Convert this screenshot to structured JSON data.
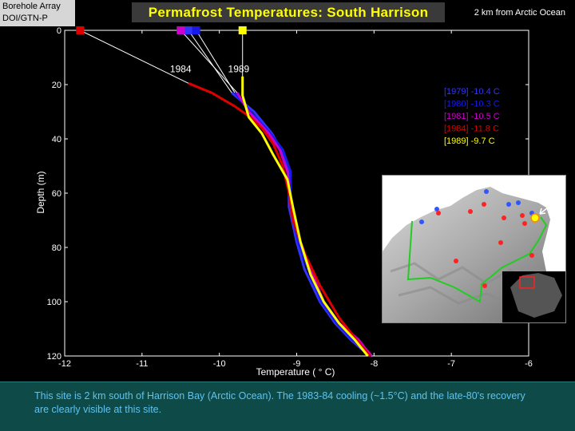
{
  "header": {
    "badge_line1": "Borehole Array",
    "badge_line2": "DOI/GTN-P",
    "title": "Permafrost Temperatures:  South Harrison",
    "subtitle": "2 km from Arctic Ocean"
  },
  "footer": {
    "caption": "This site is 2 km south of Harrison Bay (Arctic Ocean).  The 1983-84 cooling (~1.5°C) and the late-80's recovery are clearly visible at this site."
  },
  "colors": {
    "background": "#000000",
    "title_yellow": "#ffff00",
    "footer_bg": "#0d4a48",
    "footer_text": "#5ec3f2",
    "series_1979": "#3333ff",
    "series_1980": "#1a1ae6",
    "series_1981": "#cc00cc",
    "series_1984": "#dd0000",
    "series_1989": "#ffff00"
  },
  "chart_data": {
    "type": "line",
    "title": "Permafrost Temperatures:  South Harrison",
    "xlabel": "Temperature ( ° C)",
    "ylabel": "Depth (m)",
    "xlim": [
      -12,
      -6
    ],
    "ylim": [
      0,
      120
    ],
    "y_inverted": true,
    "grid": false,
    "xticks": [
      -12,
      -11,
      -10,
      -9,
      -8,
      -7,
      -6
    ],
    "yticks": [
      0,
      20,
      40,
      60,
      80,
      100,
      120
    ],
    "legend_position": "right",
    "series": [
      {
        "name": "[1979]  -10.4 C",
        "year": "1979",
        "surface_temp": -10.4,
        "color": "#3333ff",
        "x": [
          -9.84,
          -9.55,
          -9.32,
          -9.2,
          -9.1,
          -9.1,
          -9.0,
          -8.9,
          -8.7,
          -8.5,
          -8.3,
          -8.18,
          -8.05
        ],
        "y": [
          23,
          30,
          38,
          44,
          52,
          65,
          78,
          88,
          100,
          108,
          114,
          117,
          120
        ]
      },
      {
        "name": "[1980]  -10.3 C",
        "year": "1980",
        "surface_temp": -10.3,
        "color": "#1a1ae6",
        "x": [
          -9.8,
          -9.6,
          -9.34,
          -9.18,
          -9.08,
          -9.08,
          -8.98,
          -8.85,
          -8.68,
          -8.48,
          -8.28,
          -8.15,
          -8.05
        ],
        "y": [
          23,
          30,
          38,
          44,
          52,
          65,
          78,
          88,
          100,
          108,
          114,
          117,
          120
        ]
      },
      {
        "name": "[1981]  -10.5 C",
        "year": "1981",
        "surface_temp": -10.5,
        "color": "#cc00cc",
        "x": [
          -9.77,
          -9.62,
          -9.36,
          -9.22,
          -9.12,
          -9.07,
          -8.95,
          -8.82,
          -8.65,
          -8.45,
          -8.2,
          -8.12,
          -8.03
        ],
        "y": [
          23,
          30,
          38,
          44,
          52,
          65,
          78,
          88,
          100,
          108,
          114,
          117,
          120
        ]
      },
      {
        "name": "[1984]  -11.8 C",
        "year": "1984",
        "surface_temp": -11.8,
        "color": "#dd0000",
        "x": [
          -10.4,
          -10.1,
          -9.8,
          -9.6,
          -9.45,
          -9.3,
          -9.18,
          -9.1,
          -9.05,
          -8.9,
          -8.7,
          -8.45,
          -8.2,
          -8.05
        ],
        "y": [
          19.5,
          23,
          28,
          32,
          36,
          42,
          50,
          60,
          70,
          82,
          94,
          106,
          115,
          120
        ]
      },
      {
        "name": "[1989]   -9.7 C",
        "year": "1989",
        "surface_temp": -9.7,
        "color": "#ffff00",
        "x": [
          -9.7,
          -9.7,
          -9.62,
          -9.45,
          -9.3,
          -9.12,
          -9.05,
          -8.95,
          -8.82,
          -8.65,
          -8.45,
          -8.25,
          -8.08
        ],
        "y": [
          17,
          24,
          32,
          38,
          46,
          55,
          65,
          78,
          90,
          100,
          108,
          114,
          120
        ]
      }
    ],
    "annotations": [
      {
        "text": "1984",
        "x": -10.5,
        "y": 15.5
      },
      {
        "text": "1989",
        "x": -9.75,
        "y": 15.5
      }
    ]
  }
}
